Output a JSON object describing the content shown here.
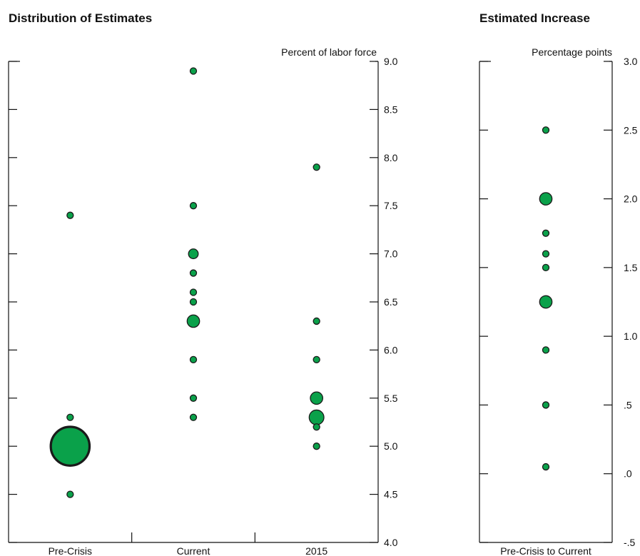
{
  "colors": {
    "dot_fill": "#0aa14a",
    "dot_stroke": "#1a1a1a",
    "axis": "#111111"
  },
  "chart_data": [
    {
      "type": "scatter",
      "title": "Distribution of Estimates",
      "ylabel": "Percent of labor force",
      "ylim": [
        4.0,
        9.0
      ],
      "yticks": [
        "4.0",
        "4.5",
        "5.0",
        "5.5",
        "6.0",
        "6.5",
        "7.0",
        "7.5",
        "8.0",
        "8.5",
        "9.0"
      ],
      "categories": [
        "Pre-Crisis",
        "Current",
        "2015"
      ],
      "note": "bubble size indicates number of estimates at that value",
      "points": [
        {
          "category": "Pre-Crisis",
          "y": 7.4,
          "count": 1
        },
        {
          "category": "Pre-Crisis",
          "y": 5.3,
          "count": 1
        },
        {
          "category": "Pre-Crisis",
          "y": 5.0,
          "count": 20
        },
        {
          "category": "Pre-Crisis",
          "y": 4.5,
          "count": 1
        },
        {
          "category": "Current",
          "y": 8.9,
          "count": 1
        },
        {
          "category": "Current",
          "y": 7.5,
          "count": 1
        },
        {
          "category": "Current",
          "y": 7.0,
          "count": 2
        },
        {
          "category": "Current",
          "y": 6.8,
          "count": 1
        },
        {
          "category": "Current",
          "y": 6.6,
          "count": 1
        },
        {
          "category": "Current",
          "y": 6.5,
          "count": 1
        },
        {
          "category": "Current",
          "y": 6.3,
          "count": 3
        },
        {
          "category": "Current",
          "y": 5.9,
          "count": 1
        },
        {
          "category": "Current",
          "y": 5.5,
          "count": 1
        },
        {
          "category": "Current",
          "y": 5.3,
          "count": 1
        },
        {
          "category": "2015",
          "y": 7.9,
          "count": 1
        },
        {
          "category": "2015",
          "y": 6.3,
          "count": 1
        },
        {
          "category": "2015",
          "y": 5.9,
          "count": 1
        },
        {
          "category": "2015",
          "y": 5.5,
          "count": 3
        },
        {
          "category": "2015",
          "y": 5.3,
          "count": 4
        },
        {
          "category": "2015",
          "y": 5.2,
          "count": 1
        },
        {
          "category": "2015",
          "y": 5.0,
          "count": 1
        }
      ]
    },
    {
      "type": "scatter",
      "title": "Estimated Increase",
      "ylabel": "Percentage points",
      "ylim": [
        -0.5,
        3.0
      ],
      "yticks": [
        "-.5",
        ".0",
        ".5",
        "1.0",
        "1.5",
        "2.0",
        "2.5",
        "3.0"
      ],
      "categories": [
        "Pre-Crisis to Current"
      ],
      "points": [
        {
          "category": "Pre-Crisis to Current",
          "y": 2.5,
          "count": 1
        },
        {
          "category": "Pre-Crisis to Current",
          "y": 2.0,
          "count": 3
        },
        {
          "category": "Pre-Crisis to Current",
          "y": 1.75,
          "count": 1
        },
        {
          "category": "Pre-Crisis to Current",
          "y": 1.6,
          "count": 1
        },
        {
          "category": "Pre-Crisis to Current",
          "y": 1.5,
          "count": 1
        },
        {
          "category": "Pre-Crisis to Current",
          "y": 1.25,
          "count": 3
        },
        {
          "category": "Pre-Crisis to Current",
          "y": 0.9,
          "count": 1
        },
        {
          "category": "Pre-Crisis to Current",
          "y": 0.5,
          "count": 1
        },
        {
          "category": "Pre-Crisis to Current",
          "y": 0.05,
          "count": 1
        }
      ]
    }
  ]
}
